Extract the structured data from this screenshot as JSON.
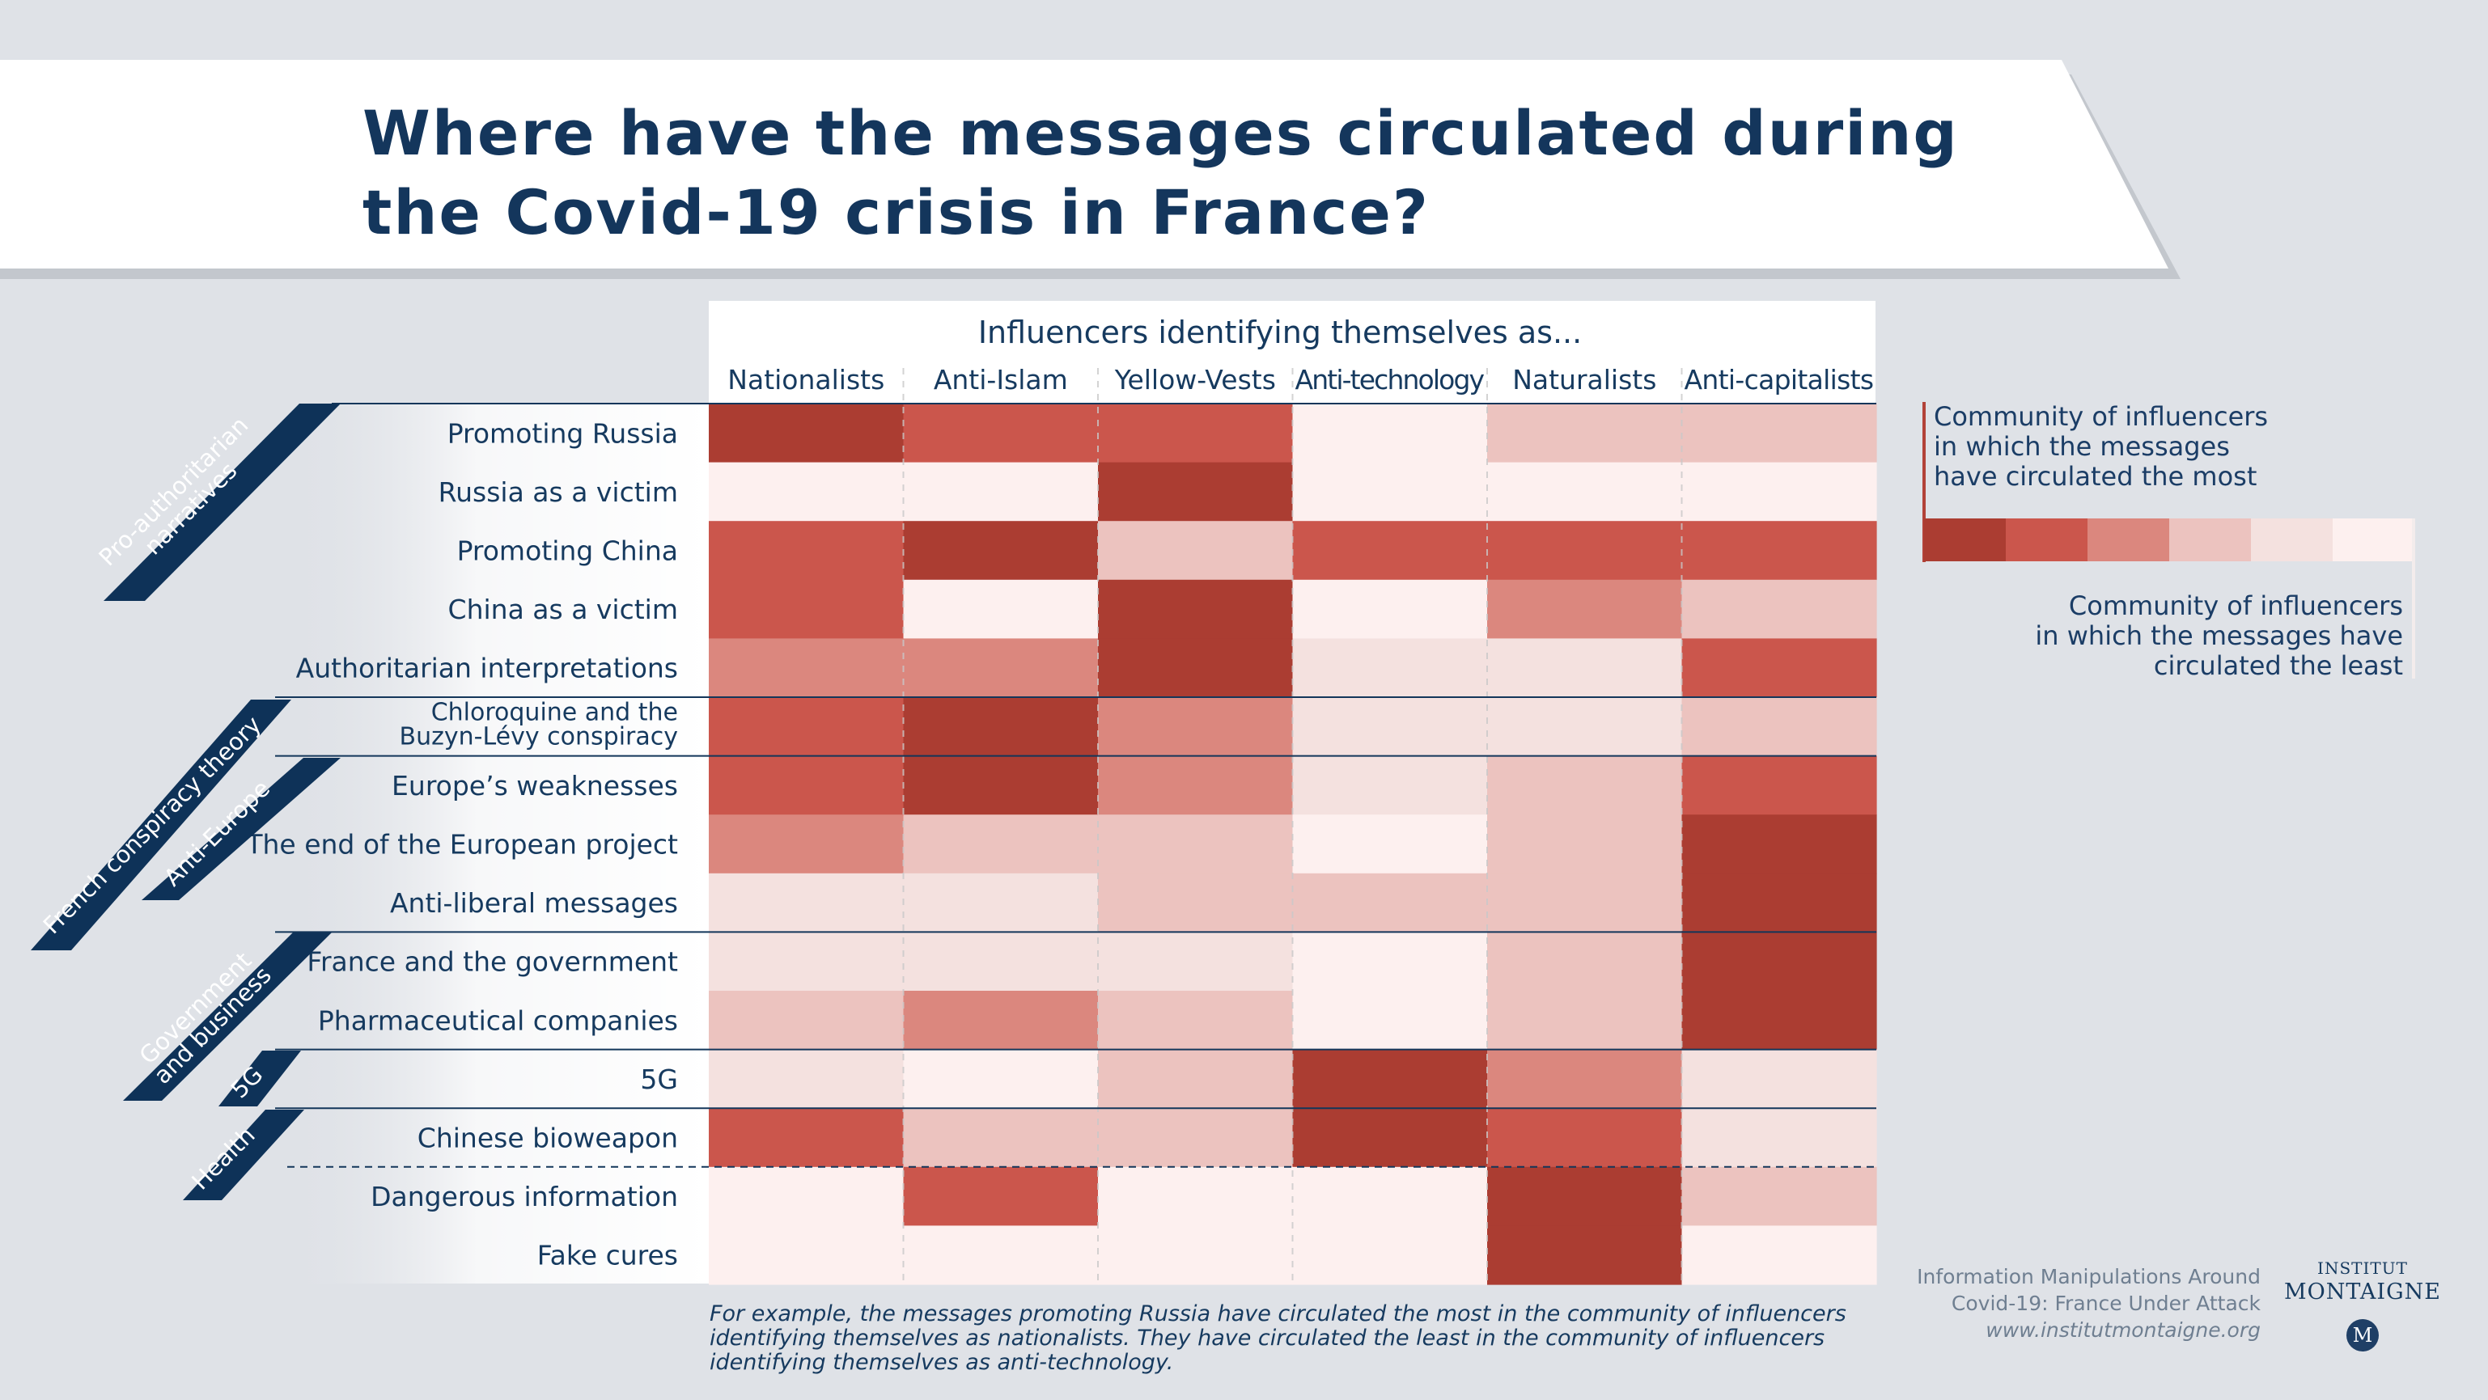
{
  "title_lines": [
    "Where have the messages circulated during",
    "the Covid-19 crisis in France?"
  ],
  "chart_data": {
    "type": "heatmap",
    "column_group_title": "Influencers identifying themselves as...",
    "columns": [
      "Nationalists",
      "Anti-Islam",
      "Yellow-Vests",
      "Anti-technology",
      "Naturalists",
      "Anti-capitalists"
    ],
    "rows": [
      {
        "label": [
          "Promoting Russia"
        ],
        "values": [
          6,
          5,
          5,
          1,
          3,
          3
        ]
      },
      {
        "label": [
          "Russia as a victim"
        ],
        "values": [
          1,
          1,
          6,
          1,
          1,
          1
        ]
      },
      {
        "label": [
          "Promoting China"
        ],
        "values": [
          5,
          6,
          3,
          5,
          5,
          5
        ]
      },
      {
        "label": [
          "China as a victim"
        ],
        "values": [
          5,
          1,
          6,
          1,
          4,
          3
        ]
      },
      {
        "label": [
          "Authoritarian interpretations"
        ],
        "values": [
          4,
          4,
          6,
          2,
          2,
          5
        ]
      },
      {
        "label": [
          "Chloroquine and the",
          "Buzyn-Lévy conspiracy"
        ],
        "values": [
          5,
          6,
          4,
          2,
          2,
          3
        ]
      },
      {
        "label": [
          "Europe’s weaknesses"
        ],
        "values": [
          5,
          6,
          4,
          2,
          3,
          5
        ]
      },
      {
        "label": [
          "The end of the European project"
        ],
        "values": [
          4,
          3,
          3,
          1,
          3,
          6
        ]
      },
      {
        "label": [
          "Anti-liberal messages"
        ],
        "values": [
          2,
          2,
          3,
          3,
          3,
          6
        ]
      },
      {
        "label": [
          "France and the government"
        ],
        "values": [
          2,
          2,
          2,
          1,
          3,
          6
        ]
      },
      {
        "label": [
          "Pharmaceutical companies"
        ],
        "values": [
          3,
          4,
          3,
          1,
          3,
          6
        ]
      },
      {
        "label": [
          "5G"
        ],
        "values": [
          2,
          1,
          3,
          6,
          4,
          2
        ]
      },
      {
        "label": [
          "Chinese bioweapon"
        ],
        "values": [
          5,
          3,
          3,
          6,
          5,
          2
        ]
      },
      {
        "label": [
          "Dangerous information"
        ],
        "values": [
          1,
          5,
          1,
          1,
          6,
          3
        ]
      },
      {
        "label": [
          "Fake cures"
        ],
        "values": [
          1,
          1,
          1,
          1,
          6,
          1
        ]
      }
    ],
    "categories": [
      {
        "label": [
          "Pro-authoritarian",
          "narratives"
        ],
        "row_start": 0,
        "row_end": 4
      },
      {
        "label": [
          "French conspiracy theory"
        ],
        "row_start": 5,
        "row_end": 5
      },
      {
        "label": [
          "Anti-Europe"
        ],
        "row_start": 6,
        "row_end": 8
      },
      {
        "label": [
          "Government",
          "and business"
        ],
        "row_start": 9,
        "row_end": 10
      },
      {
        "label": [
          "5G"
        ],
        "row_start": 11,
        "row_end": 11
      },
      {
        "label": [
          "Health"
        ],
        "row_start": 12,
        "row_end": 14
      }
    ],
    "scale": {
      "levels": [
        6,
        5,
        4,
        3,
        2,
        1
      ],
      "colors": [
        "#ab3d32",
        "#cb564c",
        "#db877e",
        "#ecc3bf",
        "#f4e1df",
        "#fdf0ef"
      ],
      "most_label": [
        "Community of influencers",
        "in which the messages",
        "have circulated the most"
      ],
      "least_label": [
        "Community of influencers",
        "in which the messages have",
        "circulated the least"
      ]
    }
  },
  "footnote_lines": [
    "For example, the messages promoting Russia have circulated the most in the community of influencers",
    "identifying themselves as nationalists. They have circulated the least in the community of influencers",
    "identifying themselves as anti-technology."
  ],
  "source_lines": [
    "Information Manipulations Around",
    "Covid-19: France Under Attack"
  ],
  "source_url": "www.institutmontaigne.org",
  "logo": {
    "line1": "INSTITUT",
    "line2": "MONTAIGNE",
    "mark": "M"
  },
  "colors": {
    "navy": "#0e3258",
    "title": "#14365c",
    "background": "#dfe2e7"
  }
}
